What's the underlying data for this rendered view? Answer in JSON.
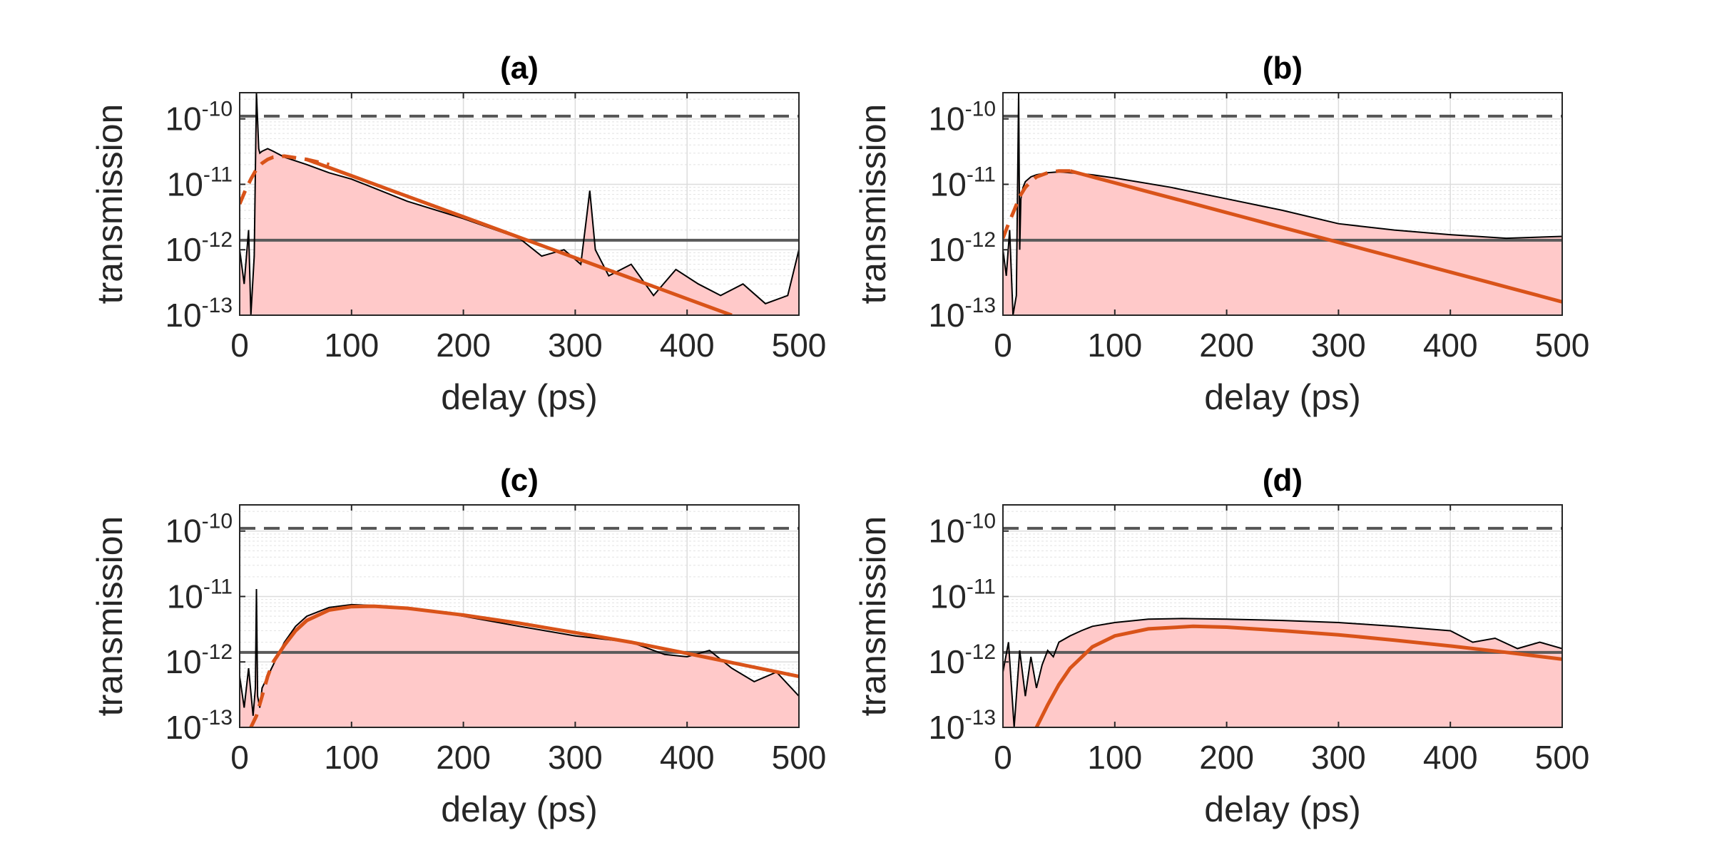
{
  "chart_data": [
    {
      "type": "line",
      "title": "(a)",
      "xlabel": "delay (ps)",
      "ylabel": "transmission",
      "xlim": [
        0,
        500
      ],
      "ylim_log10": [
        -13,
        -9.6
      ],
      "xticks": [
        "0",
        "100",
        "200",
        "300",
        "400",
        "500"
      ],
      "yticks": [
        {
          "base": "10",
          "exp": "-10"
        },
        {
          "base": "10",
          "exp": "-11"
        },
        {
          "base": "10",
          "exp": "-12"
        },
        {
          "base": "10",
          "exp": "-13"
        }
      ],
      "dashed_ref": 1.1e-10,
      "solid_ref": 1.4e-12,
      "measured": {
        "x": [
          0,
          4,
          8,
          10,
          13,
          15,
          17,
          18,
          20,
          25,
          30,
          40,
          60,
          80,
          100,
          150,
          200,
          250,
          270,
          290,
          305,
          310,
          313,
          318,
          330,
          350,
          370,
          390,
          410,
          430,
          450,
          470,
          490,
          500
        ],
        "y": [
          1e-12,
          3e-13,
          2e-12,
          1e-13,
          8e-13,
          3e-10,
          3.5e-11,
          3e-11,
          3.2e-11,
          3.5e-11,
          3.2e-11,
          2.6e-11,
          2e-11,
          1.5e-11,
          1.2e-11,
          5.5e-12,
          3e-12,
          1.5e-12,
          8e-13,
          1e-12,
          6e-13,
          3e-12,
          8e-12,
          1e-12,
          4e-13,
          6e-13,
          2e-13,
          5e-13,
          3e-13,
          2e-13,
          3e-13,
          1.5e-13,
          2e-13,
          1e-12
        ]
      },
      "fit_dashed": {
        "x": [
          0,
          5,
          10,
          15,
          20,
          25,
          30,
          40,
          60,
          80
        ],
        "y": [
          5e-12,
          8e-12,
          1.2e-11,
          1.7e-11,
          2.1e-11,
          2.4e-11,
          2.6e-11,
          2.7e-11,
          2.4e-11,
          2e-11
        ]
      },
      "fit_solid": {
        "x": [
          60,
          440
        ],
        "y": [
          2.4e-11,
          1e-13
        ]
      }
    },
    {
      "type": "line",
      "title": "(b)",
      "xlabel": "delay (ps)",
      "ylabel": "transmission",
      "xlim": [
        0,
        500
      ],
      "ylim_log10": [
        -13,
        -9.6
      ],
      "xticks": [
        "0",
        "100",
        "200",
        "300",
        "400",
        "500"
      ],
      "yticks": [
        {
          "base": "10",
          "exp": "-10"
        },
        {
          "base": "10",
          "exp": "-11"
        },
        {
          "base": "10",
          "exp": "-12"
        },
        {
          "base": "10",
          "exp": "-13"
        }
      ],
      "dashed_ref": 1.1e-10,
      "solid_ref": 1.4e-12,
      "measured": {
        "x": [
          0,
          3,
          6,
          9,
          12,
          14,
          15,
          16,
          18,
          20,
          25,
          30,
          40,
          50,
          60,
          80,
          100,
          150,
          200,
          250,
          300,
          350,
          400,
          450,
          500
        ],
        "y": [
          1e-12,
          4e-13,
          2e-12,
          1e-13,
          2e-13,
          5e-10,
          1e-12,
          6e-12,
          9e-12,
          1.1e-11,
          1.3e-11,
          1.4e-11,
          1.5e-11,
          1.55e-11,
          1.5e-11,
          1.4e-11,
          1.25e-11,
          9e-12,
          6e-12,
          4e-12,
          2.5e-12,
          2e-12,
          1.7e-12,
          1.5e-12,
          1.6e-12
        ]
      },
      "fit_dashed": {
        "x": [
          0,
          5,
          10,
          15,
          20,
          25,
          30,
          40,
          50,
          60
        ],
        "y": [
          1.5e-12,
          2.5e-12,
          4e-12,
          6.5e-12,
          9e-12,
          1.1e-11,
          1.3e-11,
          1.5e-11,
          1.6e-11,
          1.6e-11
        ]
      },
      "fit_solid": {
        "x": [
          60,
          500
        ],
        "y": [
          1.6e-11,
          1.6e-13
        ]
      }
    },
    {
      "type": "line",
      "title": "(c)",
      "xlabel": "delay (ps)",
      "ylabel": "transmission",
      "xlim": [
        0,
        500
      ],
      "ylim_log10": [
        -13,
        -9.6
      ],
      "xticks": [
        "0",
        "100",
        "200",
        "300",
        "400",
        "500"
      ],
      "yticks": [
        {
          "base": "10",
          "exp": "-10"
        },
        {
          "base": "10",
          "exp": "-11"
        },
        {
          "base": "10",
          "exp": "-12"
        },
        {
          "base": "10",
          "exp": "-13"
        }
      ],
      "dashed_ref": 1.1e-10,
      "solid_ref": 1.4e-12,
      "measured": {
        "x": [
          0,
          4,
          8,
          12,
          14,
          15,
          16,
          18,
          20,
          25,
          30,
          40,
          50,
          60,
          80,
          100,
          130,
          160,
          200,
          250,
          300,
          350,
          380,
          400,
          420,
          440,
          460,
          480,
          500
        ],
        "y": [
          6e-13,
          2e-13,
          8e-13,
          1.5e-13,
          4e-13,
          1.3e-11,
          3e-13,
          2e-13,
          4e-13,
          6e-13,
          9e-13,
          2e-12,
          3.5e-12,
          5e-12,
          6.8e-12,
          7.5e-12,
          7.2e-12,
          6.5e-12,
          5e-12,
          3.5e-12,
          2.5e-12,
          2e-12,
          1.3e-12,
          1.2e-12,
          1.5e-12,
          8e-13,
          5e-13,
          7e-13,
          3e-13
        ]
      },
      "fit_dashed": {
        "x": [
          10,
          15,
          20,
          25,
          30
        ],
        "y": [
          1e-13,
          1.5e-13,
          3e-13,
          6e-13,
          1e-12
        ]
      },
      "fit_solid": {
        "x": [
          30,
          40,
          50,
          60,
          80,
          100,
          120,
          150,
          200,
          250,
          300,
          350,
          400,
          450,
          500
        ],
        "y": [
          1e-12,
          1.8e-12,
          3e-12,
          4.3e-12,
          6.2e-12,
          7e-12,
          7.1e-12,
          6.6e-12,
          5.2e-12,
          3.9e-12,
          2.8e-12,
          2e-12,
          1.35e-12,
          9e-13,
          6e-13
        ]
      }
    },
    {
      "type": "line",
      "title": "(d)",
      "xlabel": "delay (ps)",
      "ylabel": "transmission",
      "xlim": [
        0,
        500
      ],
      "ylim_log10": [
        -13,
        -9.6
      ],
      "xticks": [
        "0",
        "100",
        "200",
        "300",
        "400",
        "500"
      ],
      "yticks": [
        {
          "base": "10",
          "exp": "-10"
        },
        {
          "base": "10",
          "exp": "-11"
        },
        {
          "base": "10",
          "exp": "-12"
        },
        {
          "base": "10",
          "exp": "-13"
        }
      ],
      "dashed_ref": 1.1e-10,
      "solid_ref": 1.4e-12,
      "measured": {
        "x": [
          0,
          5,
          10,
          15,
          20,
          25,
          30,
          35,
          40,
          45,
          50,
          60,
          70,
          80,
          100,
          130,
          160,
          200,
          250,
          300,
          350,
          400,
          420,
          440,
          460,
          480,
          500
        ],
        "y": [
          7e-13,
          2e-12,
          1e-13,
          1.5e-12,
          3e-13,
          1.2e-12,
          4e-13,
          9e-13,
          1.5e-12,
          1.2e-12,
          2e-12,
          2.5e-12,
          3e-12,
          3.5e-12,
          4e-12,
          4.5e-12,
          4.6e-12,
          4.5e-12,
          4.3e-12,
          4e-12,
          3.5e-12,
          3e-12,
          2e-12,
          2.3e-12,
          1.6e-12,
          2e-12,
          1.6e-12
        ]
      },
      "fit_dashed": {
        "x": [],
        "y": []
      },
      "fit_solid": {
        "x": [
          30,
          40,
          50,
          60,
          80,
          100,
          130,
          170,
          200,
          250,
          300,
          350,
          400,
          450,
          500
        ],
        "y": [
          1e-13,
          2.2e-13,
          4.5e-13,
          8e-13,
          1.7e-12,
          2.5e-12,
          3.2e-12,
          3.5e-12,
          3.4e-12,
          3e-12,
          2.6e-12,
          2.15e-12,
          1.75e-12,
          1.4e-12,
          1.1e-12
        ]
      }
    }
  ]
}
